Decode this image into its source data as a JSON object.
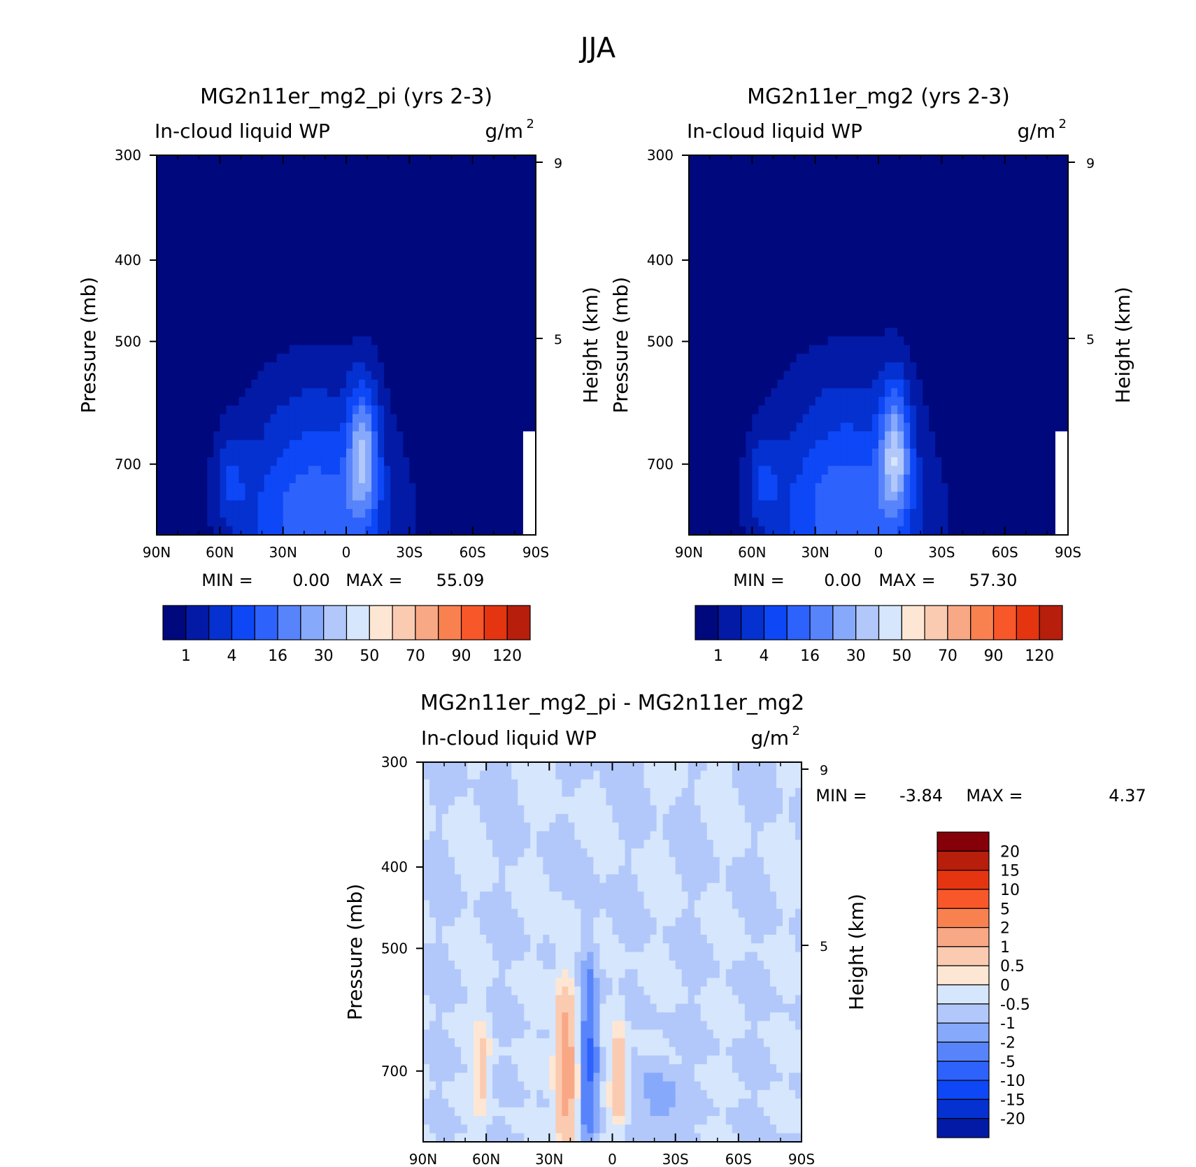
{
  "figure_title": "JJA",
  "colors": {
    "abs_scale": [
      "#00087e",
      "#021aa6",
      "#0431cf",
      "#0d47f6",
      "#2e62fc",
      "#5884fb",
      "#86a9fb",
      "#b2c8fb",
      "#d6e6fc",
      "#fde7d4",
      "#fbcbb1",
      "#f9a886",
      "#f9814f",
      "#f8572a",
      "#e53510",
      "#b71e0c",
      "#860009"
    ],
    "diff_scale": [
      "#00087e",
      "#021aa6",
      "#0431cf",
      "#0d47f6",
      "#2e62fc",
      "#5884fb",
      "#86a9fb",
      "#b2c8fb",
      "#d6e6fc",
      "#fde7d4",
      "#fbcbb1",
      "#f9a886",
      "#f9814f",
      "#f8572a",
      "#e53510",
      "#b71e0c",
      "#860009"
    ]
  },
  "panels": [
    {
      "title": "MG2n11er_mg2_pi (yrs 2-3)",
      "left_label": "In-cloud liquid WP",
      "units_base": "g/m",
      "units_exp": "2",
      "ylabel": "Pressure (mb)",
      "y2label": "Height (km)",
      "stats": {
        "min_label": "MIN =",
        "min_value": "0.00",
        "max_label": "MAX =",
        "max_value": "55.09"
      },
      "colorbar_labels": [
        "1",
        "4",
        "16",
        "30",
        "50",
        "70",
        "90",
        "120"
      ]
    },
    {
      "title": "MG2n11er_mg2 (yrs 2-3)",
      "left_label": "In-cloud liquid WP",
      "units_base": "g/m",
      "units_exp": "2",
      "ylabel": "Pressure (mb)",
      "y2label": "Height (km)",
      "stats": {
        "min_label": "MIN =",
        "min_value": "0.00",
        "max_label": "MAX =",
        "max_value": "57.30"
      },
      "colorbar_labels": [
        "1",
        "4",
        "16",
        "30",
        "50",
        "70",
        "90",
        "120"
      ]
    },
    {
      "title": "MG2n11er_mg2_pi - MG2n11er_mg2",
      "left_label": "In-cloud liquid WP",
      "units_base": "g/m",
      "units_exp": "2",
      "ylabel": "Pressure (mb)",
      "y2label": "Height (km)",
      "stats": {
        "min_label": "MIN =",
        "min_value": "-3.84",
        "max_label": "MAX =",
        "max_value": "4.37"
      },
      "colorbar_labels": [
        "20",
        "15",
        "10",
        "5",
        "2",
        "1",
        "0.5",
        "0",
        "-0.5",
        "-1",
        "-2",
        "-5",
        "-10",
        "-15",
        "-20"
      ]
    }
  ],
  "chart_data": [
    {
      "type": "heatmap",
      "title": "MG2n11er_mg2_pi (yrs 2-3)",
      "variable": "In-cloud liquid WP",
      "units": "g/m2",
      "xlabel": "",
      "ylabel": "Pressure (mb)",
      "y2label": "Height (km)",
      "x_ticks": [
        "90N",
        "60N",
        "30N",
        "0",
        "30S",
        "60S",
        "90S"
      ],
      "x_tick_values": [
        90,
        60,
        30,
        0,
        -30,
        -60,
        -90
      ],
      "xlim": [
        90,
        -90
      ],
      "y_ticks": [
        300,
        400,
        500,
        700
      ],
      "ylim": [
        300,
        850
      ],
      "y_scale": "log",
      "y2_ticks": [
        9,
        5
      ],
      "levels": [
        1,
        4,
        16,
        30,
        50,
        70,
        90,
        120
      ],
      "min": 0.0,
      "max": 55.09,
      "peak": {
        "lat": -8,
        "pressure": 700,
        "value": 55.09
      }
    },
    {
      "type": "heatmap",
      "title": "MG2n11er_mg2 (yrs 2-3)",
      "variable": "In-cloud liquid WP",
      "units": "g/m2",
      "xlabel": "",
      "ylabel": "Pressure (mb)",
      "y2label": "Height (km)",
      "x_ticks": [
        "90N",
        "60N",
        "30N",
        "0",
        "30S",
        "60S",
        "90S"
      ],
      "x_tick_values": [
        90,
        60,
        30,
        0,
        -30,
        -60,
        -90
      ],
      "xlim": [
        90,
        -90
      ],
      "y_ticks": [
        300,
        400,
        500,
        700
      ],
      "ylim": [
        300,
        850
      ],
      "y_scale": "log",
      "y2_ticks": [
        9,
        5
      ],
      "levels": [
        1,
        4,
        16,
        30,
        50,
        70,
        90,
        120
      ],
      "min": 0.0,
      "max": 57.3,
      "peak": {
        "lat": -8,
        "pressure": 690,
        "value": 57.3
      }
    },
    {
      "type": "heatmap",
      "title": "MG2n11er_mg2_pi - MG2n11er_mg2",
      "variable": "In-cloud liquid WP",
      "units": "g/m2",
      "xlabel": "",
      "ylabel": "Pressure (mb)",
      "y2label": "Height (km)",
      "x_ticks": [
        "90N",
        "60N",
        "30N",
        "0",
        "30S",
        "60S",
        "90S"
      ],
      "x_tick_values": [
        90,
        60,
        30,
        0,
        -30,
        -60,
        -90
      ],
      "xlim": [
        90,
        -90
      ],
      "y_ticks": [
        300,
        400,
        500,
        700
      ],
      "ylim": [
        300,
        850
      ],
      "y_scale": "log",
      "y2_ticks": [
        9,
        5
      ],
      "levels": [
        -20,
        -15,
        -10,
        -5,
        -2,
        -1,
        -0.5,
        0,
        0.5,
        1,
        2,
        5,
        10,
        15,
        20
      ],
      "min": -3.84,
      "max": 4.37
    }
  ]
}
